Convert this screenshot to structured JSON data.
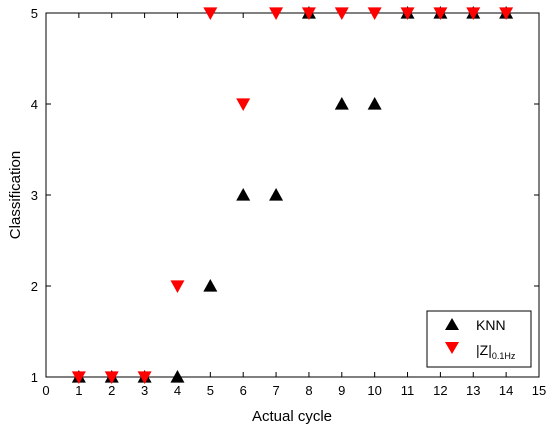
{
  "chart_data": {
    "type": "scatter",
    "title": "",
    "xlabel": "Actual cycle",
    "ylabel": "Classification",
    "xlim": [
      0,
      15
    ],
    "ylim": [
      1,
      5
    ],
    "xticks": [
      0,
      1,
      2,
      3,
      4,
      5,
      6,
      7,
      8,
      9,
      10,
      11,
      12,
      13,
      14,
      15
    ],
    "yticks": [
      1,
      2,
      3,
      4,
      5
    ],
    "grid": false,
    "legend_position": "bottom-right",
    "series": [
      {
        "name": "KNN",
        "marker": "triangle-up",
        "color": "#000000",
        "x": [
          1,
          2,
          3,
          4,
          5,
          6,
          7,
          8,
          9,
          10,
          11,
          12,
          13,
          14
        ],
        "y": [
          1,
          1,
          1,
          1,
          2,
          3,
          3,
          5,
          4,
          4,
          5,
          5,
          5,
          5
        ]
      },
      {
        "name": "|Z|",
        "name_subscript": "0.1Hz",
        "marker": "triangle-down",
        "color": "#ff0000",
        "x": [
          1,
          2,
          3,
          4,
          5,
          6,
          7,
          8,
          9,
          10,
          11,
          12,
          13,
          14
        ],
        "y": [
          1,
          1,
          1,
          2,
          5,
          4,
          5,
          5,
          5,
          5,
          5,
          5,
          5,
          5
        ]
      }
    ]
  }
}
